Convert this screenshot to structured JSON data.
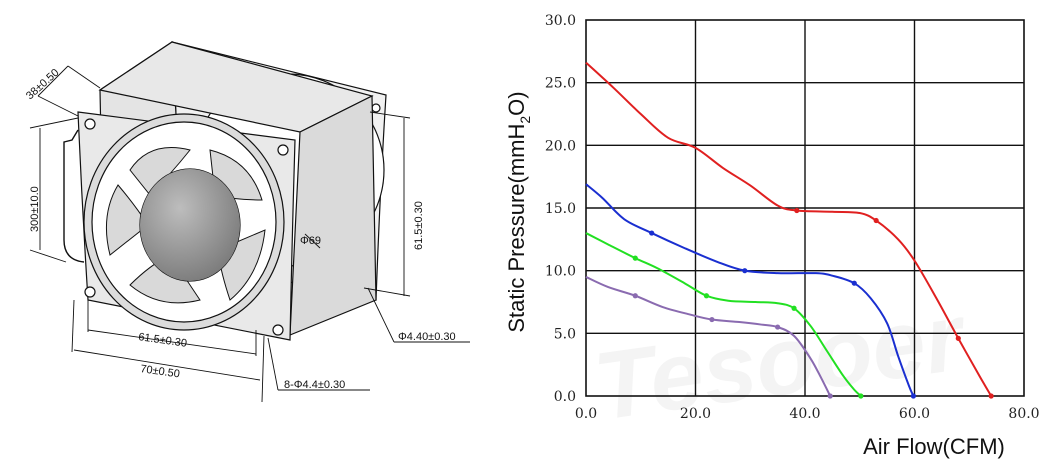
{
  "drawing": {
    "dimensions": {
      "depth": "38±0.50",
      "lead_length": "300±10.0",
      "hole_spacing_v": "61.5±0.30",
      "hole_spacing_h": "61.5±0.30",
      "frame_width": "70±0.50",
      "bore": "Φ69",
      "hole_diameter": "Φ4.40±0.30",
      "holes": "8-Φ4.4±0.30"
    }
  },
  "watermark": "Tesooer",
  "chart_data": {
    "type": "line",
    "title": "",
    "xlabel": "Air Flow(CFM)",
    "ylabel_main": "Static Pressure(mmH",
    "ylabel_sub": "2",
    "ylabel_end": "O)",
    "xlim": [
      0,
      80
    ],
    "ylim": [
      0,
      30
    ],
    "x_ticks": [
      "0.0",
      "20.0",
      "40.0",
      "60.0",
      "80.0"
    ],
    "y_ticks": [
      "0.0",
      "5.0",
      "10.0",
      "15.0",
      "20.0",
      "25.0",
      "30.0"
    ],
    "grid": true,
    "series": [
      {
        "color": "#e02020",
        "points": [
          [
            0,
            26.6
          ],
          [
            5,
            24.6
          ],
          [
            10,
            22.5
          ],
          [
            15,
            20.6
          ],
          [
            20,
            19.8
          ],
          [
            25,
            18.2
          ],
          [
            30,
            16.8
          ],
          [
            35,
            15.2
          ],
          [
            38.5,
            14.8
          ],
          [
            45,
            14.7
          ],
          [
            50,
            14.6
          ],
          [
            53,
            14.0
          ],
          [
            57,
            12.5
          ],
          [
            60,
            10.8
          ],
          [
            64,
            7.8
          ],
          [
            68,
            4.6
          ],
          [
            72,
            1.5
          ],
          [
            74,
            0
          ]
        ],
        "markers": [
          [
            38.5,
            14.8
          ],
          [
            53,
            14.0
          ],
          [
            68,
            4.6
          ],
          [
            74,
            0
          ]
        ]
      },
      {
        "color": "#1a2fd0",
        "points": [
          [
            0,
            16.9
          ],
          [
            3,
            15.8
          ],
          [
            7,
            14.1
          ],
          [
            12,
            13.0
          ],
          [
            18,
            11.8
          ],
          [
            24,
            10.7
          ],
          [
            29,
            10.0
          ],
          [
            35,
            9.8
          ],
          [
            42,
            9.8
          ],
          [
            45,
            9.6
          ],
          [
            49,
            9.0
          ],
          [
            52,
            7.8
          ],
          [
            55,
            5.8
          ],
          [
            57,
            3.2
          ],
          [
            59,
            0.8
          ],
          [
            59.8,
            0
          ]
        ],
        "markers": [
          [
            12,
            13.0
          ],
          [
            29,
            10.0
          ],
          [
            49,
            9.0
          ],
          [
            59.8,
            0
          ]
        ]
      },
      {
        "color": "#22e022",
        "points": [
          [
            0,
            13.0
          ],
          [
            4,
            12.1
          ],
          [
            9,
            11.0
          ],
          [
            13,
            10.2
          ],
          [
            18,
            9.0
          ],
          [
            22,
            8.0
          ],
          [
            26,
            7.6
          ],
          [
            31,
            7.5
          ],
          [
            35,
            7.4
          ],
          [
            38,
            7.0
          ],
          [
            41,
            5.6
          ],
          [
            44,
            3.6
          ],
          [
            47,
            1.6
          ],
          [
            49,
            0.5
          ],
          [
            50.2,
            0
          ]
        ],
        "markers": [
          [
            9,
            11.0
          ],
          [
            22,
            8.0
          ],
          [
            38,
            7.0
          ],
          [
            50.2,
            0
          ]
        ]
      },
      {
        "color": "#8a6bb0",
        "points": [
          [
            0,
            9.5
          ],
          [
            4,
            8.7
          ],
          [
            9,
            8.0
          ],
          [
            14,
            7.1
          ],
          [
            19,
            6.5
          ],
          [
            23,
            6.1
          ],
          [
            28,
            5.9
          ],
          [
            32,
            5.7
          ],
          [
            35,
            5.5
          ],
          [
            38,
            4.8
          ],
          [
            41,
            3.0
          ],
          [
            43,
            1.4
          ],
          [
            44.6,
            0
          ]
        ],
        "markers": [
          [
            9,
            8.0
          ],
          [
            23,
            6.1
          ],
          [
            35,
            5.5
          ],
          [
            44.6,
            0
          ]
        ]
      }
    ]
  }
}
